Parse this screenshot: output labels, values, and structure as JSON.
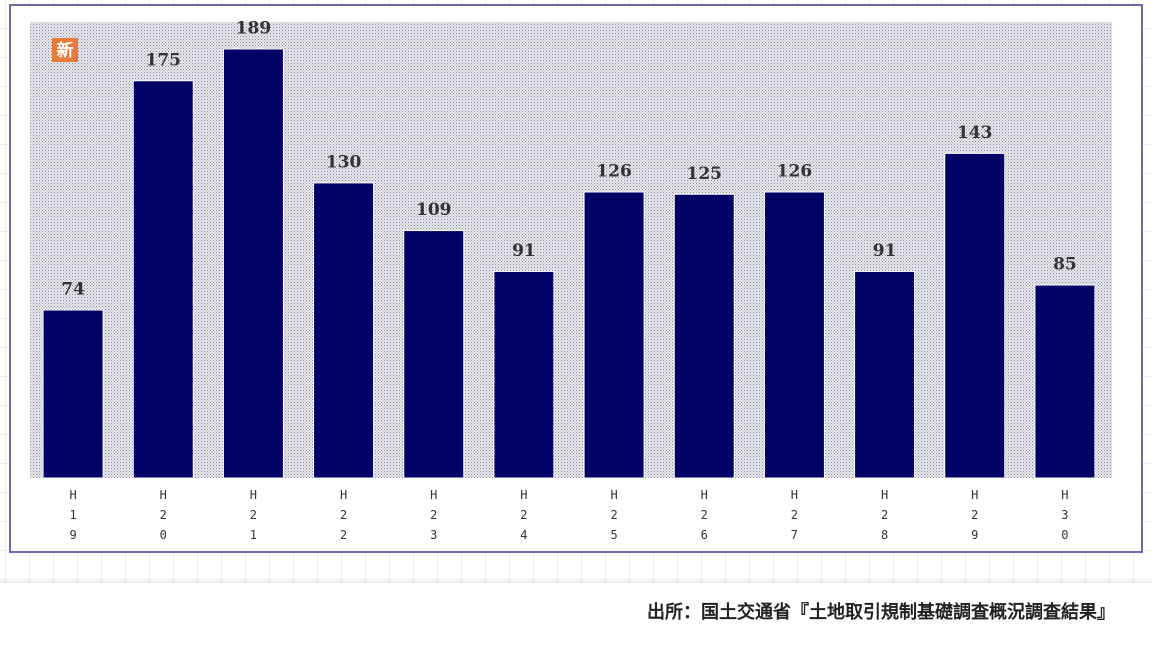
{
  "chart_data": {
    "type": "bar",
    "badge": "新",
    "categories": [
      "H19",
      "H20",
      "H21",
      "H22",
      "H23",
      "H24",
      "H25",
      "H26",
      "H27",
      "H28",
      "H29",
      "H30"
    ],
    "values": [
      74,
      175,
      189,
      130,
      109,
      91,
      126,
      125,
      126,
      91,
      143,
      85
    ],
    "color": "#000066",
    "ylim": [
      0,
      200
    ],
    "source": "出所：国土交通省『土地取引規制基礎調査概況調査結果』"
  }
}
